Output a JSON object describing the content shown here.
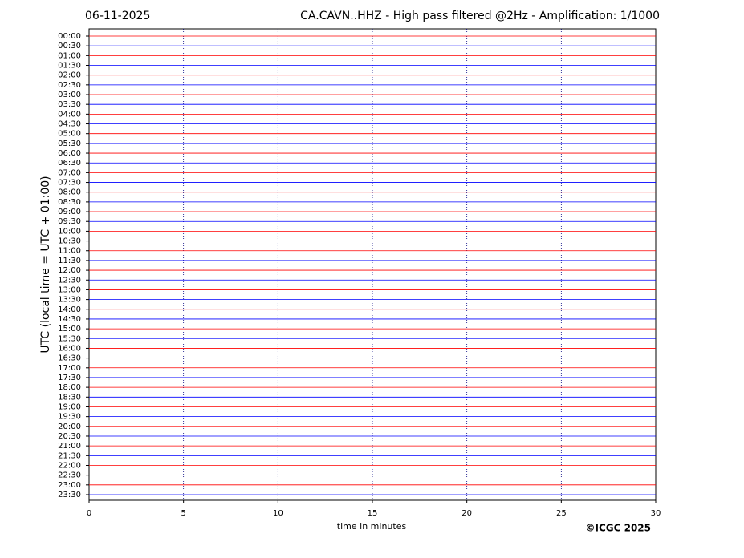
{
  "chart_data": {
    "type": "helicorder",
    "date": "06-11-2025",
    "title": "CA.CAVN..HHZ - High pass filtered @2Hz - Amplification: 1/1000",
    "xlabel": "time in minutes",
    "ylabel": "UTC (local time = UTC + 01:00)",
    "credit": "©ICGC 2025",
    "xlim": [
      0,
      30
    ],
    "xticks": [
      0,
      5,
      10,
      15,
      20,
      25,
      30
    ],
    "grid": true,
    "colors": [
      "#ff0000",
      "#0000ff"
    ],
    "categories": [
      "00:00",
      "00:30",
      "01:00",
      "01:30",
      "02:00",
      "02:30",
      "03:00",
      "03:30",
      "04:00",
      "04:30",
      "05:00",
      "05:30",
      "06:00",
      "06:30",
      "07:00",
      "07:30",
      "08:00",
      "08:30",
      "09:00",
      "09:30",
      "10:00",
      "10:30",
      "11:00",
      "11:30",
      "12:00",
      "12:30",
      "13:00",
      "13:30",
      "14:00",
      "14:30",
      "15:00",
      "15:30",
      "16:00",
      "16:30",
      "17:00",
      "17:30",
      "18:00",
      "18:30",
      "19:00",
      "19:30",
      "20:00",
      "20:30",
      "21:00",
      "21:30",
      "22:00",
      "22:30",
      "23:00",
      "23:30"
    ]
  }
}
